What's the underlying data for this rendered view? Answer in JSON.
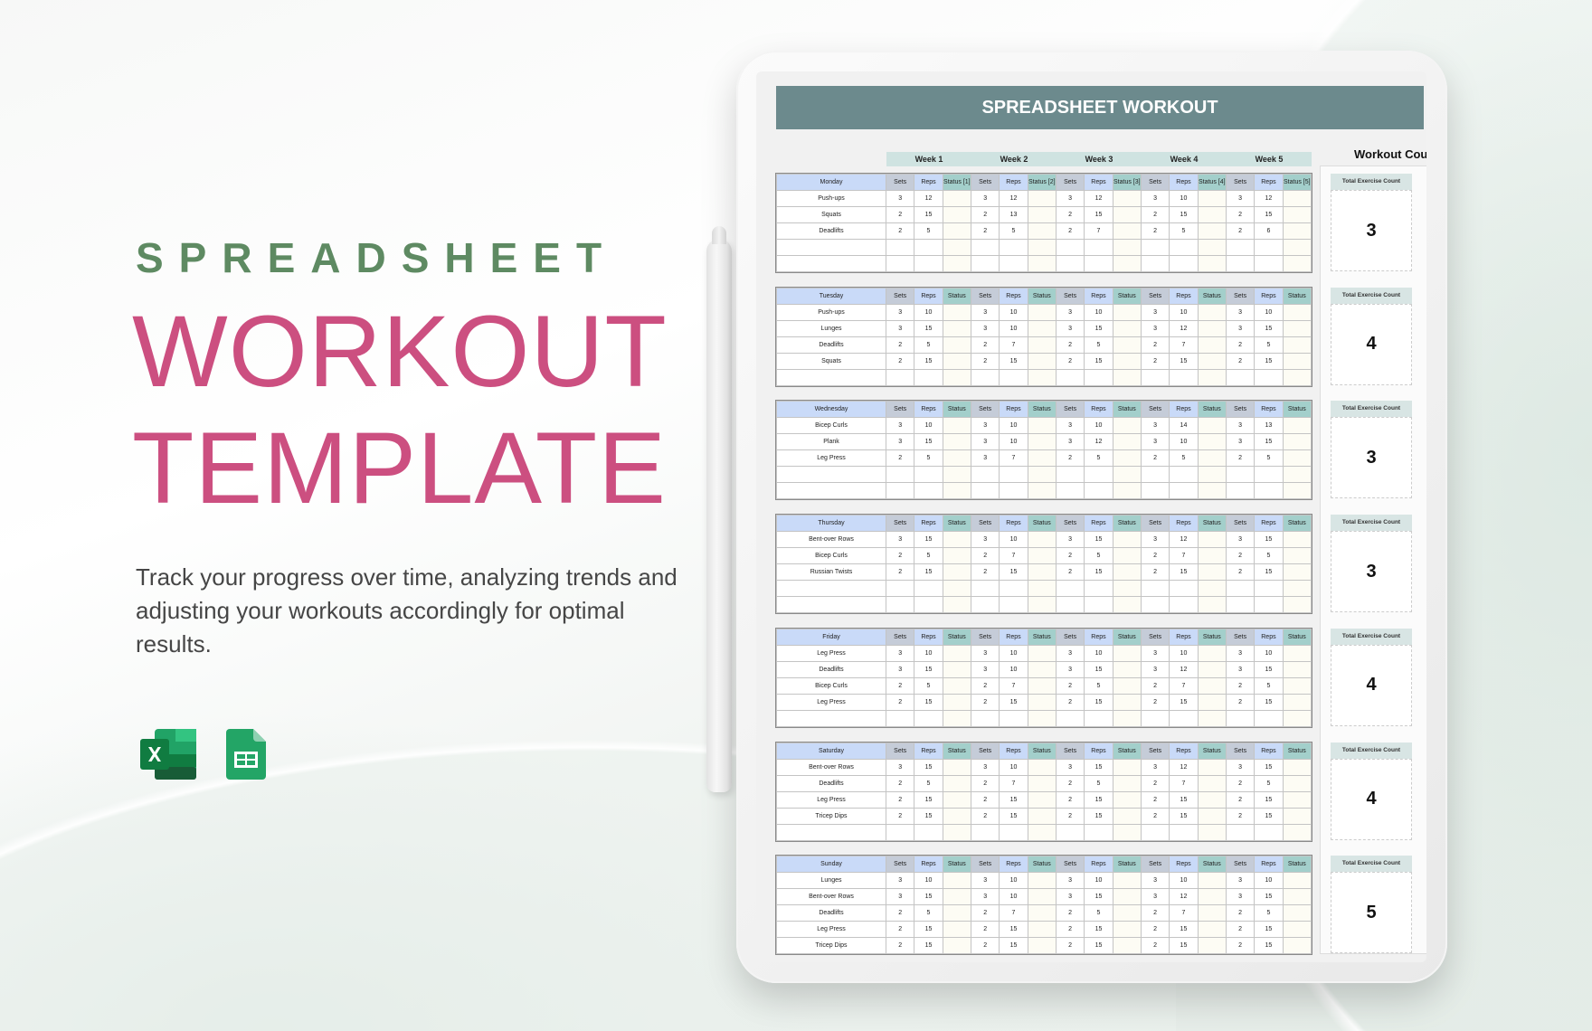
{
  "hero": {
    "kicker": "SPREADSHEET",
    "title_line1": "WORKOUT",
    "title_line2": "TEMPLATE",
    "description": "Track your progress over time, analyzing trends and adjusting your workouts accordingly for optimal results.",
    "icons": [
      "microsoft-excel-icon",
      "google-sheets-icon"
    ]
  },
  "colors": {
    "accent_pink": "#cc4f80",
    "accent_green": "#5e8a62",
    "header_bar": "#6c8a8d",
    "status_header": "#a3cfcb",
    "day_header": "#c9daf8"
  },
  "sheet": {
    "title": "SPREADSHEET WORKOUT",
    "weeks": [
      "Week 1",
      "Week 2",
      "Week 3",
      "Week 4",
      "Week 5"
    ],
    "panel_title": "Workout Count",
    "count_label": "Total Exercise Count",
    "sets_label": "Sets",
    "reps_label": "Reps",
    "days": [
      {
        "day": "Monday",
        "status_labels": [
          "Status [1]",
          "Status [2]",
          "Status [3]",
          "Status [4]",
          "Status [5]"
        ],
        "total_count": "3",
        "exercises": [
          {
            "name": "Push-ups",
            "weeks": [
              [
                "3",
                "12"
              ],
              [
                "3",
                "12"
              ],
              [
                "3",
                "12"
              ],
              [
                "3",
                "10"
              ],
              [
                "3",
                "12"
              ]
            ]
          },
          {
            "name": "Squats",
            "weeks": [
              [
                "2",
                "15"
              ],
              [
                "2",
                "13"
              ],
              [
                "2",
                "15"
              ],
              [
                "2",
                "15"
              ],
              [
                "2",
                "15"
              ]
            ]
          },
          {
            "name": "Deadlifts",
            "weeks": [
              [
                "2",
                "5"
              ],
              [
                "2",
                "5"
              ],
              [
                "2",
                "7"
              ],
              [
                "2",
                "5"
              ],
              [
                "2",
                "6"
              ]
            ]
          }
        ]
      },
      {
        "day": "Tuesday",
        "status_labels": [
          "Status",
          "Status",
          "Status",
          "Status",
          "Status"
        ],
        "total_count": "4",
        "exercises": [
          {
            "name": "Push-ups",
            "weeks": [
              [
                "3",
                "10"
              ],
              [
                "3",
                "10"
              ],
              [
                "3",
                "10"
              ],
              [
                "3",
                "10"
              ],
              [
                "3",
                "10"
              ]
            ]
          },
          {
            "name": "Lunges",
            "weeks": [
              [
                "3",
                "15"
              ],
              [
                "3",
                "10"
              ],
              [
                "3",
                "15"
              ],
              [
                "3",
                "12"
              ],
              [
                "3",
                "15"
              ]
            ]
          },
          {
            "name": "Deadlifts",
            "weeks": [
              [
                "2",
                "5"
              ],
              [
                "2",
                "7"
              ],
              [
                "2",
                "5"
              ],
              [
                "2",
                "7"
              ],
              [
                "2",
                "5"
              ]
            ]
          },
          {
            "name": "Squats",
            "weeks": [
              [
                "2",
                "15"
              ],
              [
                "2",
                "15"
              ],
              [
                "2",
                "15"
              ],
              [
                "2",
                "15"
              ],
              [
                "2",
                "15"
              ]
            ]
          }
        ]
      },
      {
        "day": "Wednesday",
        "status_labels": [
          "Status",
          "Status",
          "Status",
          "Status",
          "Status"
        ],
        "total_count": "3",
        "exercises": [
          {
            "name": "Bicep Curls",
            "weeks": [
              [
                "3",
                "10"
              ],
              [
                "3",
                "10"
              ],
              [
                "3",
                "10"
              ],
              [
                "3",
                "14"
              ],
              [
                "3",
                "13"
              ]
            ]
          },
          {
            "name": "Plank",
            "weeks": [
              [
                "3",
                "15"
              ],
              [
                "3",
                "10"
              ],
              [
                "3",
                "12"
              ],
              [
                "3",
                "10"
              ],
              [
                "3",
                "15"
              ]
            ]
          },
          {
            "name": "Leg Press",
            "weeks": [
              [
                "2",
                "5"
              ],
              [
                "3",
                "7"
              ],
              [
                "2",
                "5"
              ],
              [
                "2",
                "5"
              ],
              [
                "2",
                "5"
              ]
            ]
          }
        ]
      },
      {
        "day": "Thursday",
        "status_labels": [
          "Status",
          "Status",
          "Status",
          "Status",
          "Status"
        ],
        "total_count": "3",
        "exercises": [
          {
            "name": "Bent-over Rows",
            "weeks": [
              [
                "3",
                "15"
              ],
              [
                "3",
                "10"
              ],
              [
                "3",
                "15"
              ],
              [
                "3",
                "12"
              ],
              [
                "3",
                "15"
              ]
            ]
          },
          {
            "name": "Bicep Curls",
            "weeks": [
              [
                "2",
                "5"
              ],
              [
                "2",
                "7"
              ],
              [
                "2",
                "5"
              ],
              [
                "2",
                "7"
              ],
              [
                "2",
                "5"
              ]
            ]
          },
          {
            "name": "Russian Twists",
            "weeks": [
              [
                "2",
                "15"
              ],
              [
                "2",
                "15"
              ],
              [
                "2",
                "15"
              ],
              [
                "2",
                "15"
              ],
              [
                "2",
                "15"
              ]
            ]
          }
        ]
      },
      {
        "day": "Friday",
        "status_labels": [
          "Status",
          "Status",
          "Status",
          "Status",
          "Status"
        ],
        "total_count": "4",
        "exercises": [
          {
            "name": "Leg Press",
            "weeks": [
              [
                "3",
                "10"
              ],
              [
                "3",
                "10"
              ],
              [
                "3",
                "10"
              ],
              [
                "3",
                "10"
              ],
              [
                "3",
                "10"
              ]
            ]
          },
          {
            "name": "Deadlifts",
            "weeks": [
              [
                "3",
                "15"
              ],
              [
                "3",
                "10"
              ],
              [
                "3",
                "15"
              ],
              [
                "3",
                "12"
              ],
              [
                "3",
                "15"
              ]
            ]
          },
          {
            "name": "Bicep Curls",
            "weeks": [
              [
                "2",
                "5"
              ],
              [
                "2",
                "7"
              ],
              [
                "2",
                "5"
              ],
              [
                "2",
                "7"
              ],
              [
                "2",
                "5"
              ]
            ]
          },
          {
            "name": "Leg Press",
            "weeks": [
              [
                "2",
                "15"
              ],
              [
                "2",
                "15"
              ],
              [
                "2",
                "15"
              ],
              [
                "2",
                "15"
              ],
              [
                "2",
                "15"
              ]
            ]
          }
        ]
      },
      {
        "day": "Saturday",
        "status_labels": [
          "Status",
          "Status",
          "Status",
          "Status",
          "Status"
        ],
        "total_count": "4",
        "exercises": [
          {
            "name": "Bent-over Rows",
            "weeks": [
              [
                "3",
                "15"
              ],
              [
                "3",
                "10"
              ],
              [
                "3",
                "15"
              ],
              [
                "3",
                "12"
              ],
              [
                "3",
                "15"
              ]
            ]
          },
          {
            "name": "Deadlifts",
            "weeks": [
              [
                "2",
                "5"
              ],
              [
                "2",
                "7"
              ],
              [
                "2",
                "5"
              ],
              [
                "2",
                "7"
              ],
              [
                "2",
                "5"
              ]
            ]
          },
          {
            "name": "Leg Press",
            "weeks": [
              [
                "2",
                "15"
              ],
              [
                "2",
                "15"
              ],
              [
                "2",
                "15"
              ],
              [
                "2",
                "15"
              ],
              [
                "2",
                "15"
              ]
            ]
          },
          {
            "name": "Tricep Dips",
            "weeks": [
              [
                "2",
                "15"
              ],
              [
                "2",
                "15"
              ],
              [
                "2",
                "15"
              ],
              [
                "2",
                "15"
              ],
              [
                "2",
                "15"
              ]
            ]
          }
        ]
      },
      {
        "day": "Sunday",
        "status_labels": [
          "Status",
          "Status",
          "Status",
          "Status",
          "Status"
        ],
        "total_count": "5",
        "exercises": [
          {
            "name": "Lunges",
            "weeks": [
              [
                "3",
                "10"
              ],
              [
                "3",
                "10"
              ],
              [
                "3",
                "10"
              ],
              [
                "3",
                "10"
              ],
              [
                "3",
                "10"
              ]
            ]
          },
          {
            "name": "Bent-over Rows",
            "weeks": [
              [
                "3",
                "15"
              ],
              [
                "3",
                "10"
              ],
              [
                "3",
                "15"
              ],
              [
                "3",
                "12"
              ],
              [
                "3",
                "15"
              ]
            ]
          },
          {
            "name": "Deadlifts",
            "weeks": [
              [
                "2",
                "5"
              ],
              [
                "2",
                "7"
              ],
              [
                "2",
                "5"
              ],
              [
                "2",
                "7"
              ],
              [
                "2",
                "5"
              ]
            ]
          },
          {
            "name": "Leg Press",
            "weeks": [
              [
                "2",
                "15"
              ],
              [
                "2",
                "15"
              ],
              [
                "2",
                "15"
              ],
              [
                "2",
                "15"
              ],
              [
                "2",
                "15"
              ]
            ]
          },
          {
            "name": "Tricep Dips",
            "weeks": [
              [
                "2",
                "15"
              ],
              [
                "2",
                "15"
              ],
              [
                "2",
                "15"
              ],
              [
                "2",
                "15"
              ],
              [
                "2",
                "15"
              ]
            ]
          }
        ]
      }
    ]
  }
}
